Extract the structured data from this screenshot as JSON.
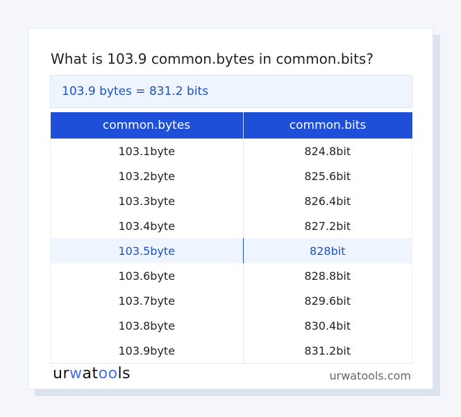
{
  "title": "What is 103.9 common.bytes in common.bits?",
  "result": "103.9 bytes = 831.2 bits",
  "table": {
    "headers": [
      "common.bytes",
      "common.bits"
    ],
    "rows": [
      [
        "103.1byte",
        "824.8bit"
      ],
      [
        "103.2byte",
        "825.6bit"
      ],
      [
        "103.3byte",
        "826.4bit"
      ],
      [
        "103.4byte",
        "827.2bit"
      ],
      [
        "103.5byte",
        "828bit"
      ],
      [
        "103.6byte",
        "828.8bit"
      ],
      [
        "103.7byte",
        "829.6bit"
      ],
      [
        "103.8byte",
        "830.4bit"
      ],
      [
        "103.9byte",
        "831.2bit"
      ]
    ],
    "highlighted_row": 4
  },
  "footer": {
    "logo": "urwatools",
    "logo_parts": [
      "ur",
      "w",
      "at",
      "oo",
      "ls"
    ],
    "site": "urwatools.com"
  },
  "colors": {
    "accent": "#1d4fd8",
    "highlight_bg": "#eef5fe"
  }
}
